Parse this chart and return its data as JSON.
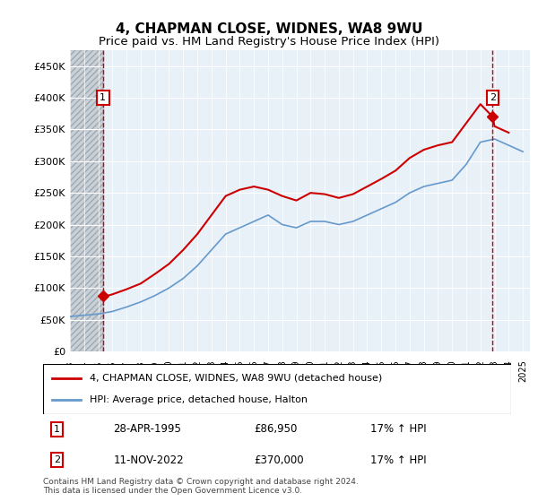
{
  "title": "4, CHAPMAN CLOSE, WIDNES, WA8 9WU",
  "subtitle": "Price paid vs. HM Land Registry's House Price Index (HPI)",
  "legend_line1": "4, CHAPMAN CLOSE, WIDNES, WA8 9WU (detached house)",
  "legend_line2": "HPI: Average price, detached house, Halton",
  "footer1": "Contains HM Land Registry data © Crown copyright and database right 2024.",
  "footer2": "This data is licensed under the Open Government Licence v3.0.",
  "annotation1_label": "1",
  "annotation1_date": "28-APR-1995",
  "annotation1_price": "£86,950",
  "annotation1_hpi": "17% ↑ HPI",
  "annotation2_label": "2",
  "annotation2_date": "11-NOV-2022",
  "annotation2_price": "£370,000",
  "annotation2_hpi": "17% ↑ HPI",
  "ylim": [
    0,
    475000
  ],
  "yticks": [
    0,
    50000,
    100000,
    150000,
    200000,
    250000,
    300000,
    350000,
    400000,
    450000
  ],
  "xlim_start": 1993.0,
  "xlim_end": 2025.5,
  "hatch_end": 1995.33,
  "vline1_x": 1995.33,
  "vline2_x": 2022.87,
  "marker1_x": 1995.33,
  "marker1_y": 86950,
  "marker2_x": 2022.87,
  "marker2_y": 370000,
  "bg_color": "#e8f0f8",
  "hatch_color": "#c8d0d8",
  "plot_bg": "#dce8f0",
  "red_line_color": "#cc0000",
  "blue_line_color": "#6699cc",
  "vline_color": "#cc0000",
  "marker_color": "#cc0000",
  "grid_color": "#ffffff",
  "hpi_line": {
    "years": [
      1993,
      1994,
      1995,
      1996,
      1997,
      1998,
      1999,
      2000,
      2001,
      2002,
      2003,
      2004,
      2005,
      2006,
      2007,
      2008,
      2009,
      2010,
      2011,
      2012,
      2013,
      2014,
      2015,
      2016,
      2017,
      2018,
      2019,
      2020,
      2021,
      2022,
      2023,
      2024,
      2025
    ],
    "values": [
      55000,
      57000,
      59000,
      63000,
      70000,
      78000,
      88000,
      100000,
      115000,
      135000,
      160000,
      185000,
      195000,
      205000,
      215000,
      200000,
      195000,
      205000,
      205000,
      200000,
      205000,
      215000,
      225000,
      235000,
      250000,
      260000,
      265000,
      270000,
      295000,
      330000,
      335000,
      325000,
      315000
    ]
  },
  "price_line": {
    "years": [
      1995.33,
      1995.5,
      1996,
      1997,
      1998,
      1999,
      2000,
      2001,
      2002,
      2003,
      2004,
      2005,
      2006,
      2007,
      2008,
      2009,
      2010,
      2011,
      2012,
      2013,
      2014,
      2015,
      2016,
      2017,
      2018,
      2019,
      2020,
      2021,
      2022,
      2022.87,
      2023,
      2024
    ],
    "values": [
      86950,
      87000,
      90000,
      98000,
      107000,
      122000,
      138000,
      160000,
      185000,
      215000,
      245000,
      255000,
      260000,
      255000,
      245000,
      238000,
      250000,
      248000,
      242000,
      248000,
      260000,
      272000,
      285000,
      305000,
      318000,
      325000,
      330000,
      360000,
      390000,
      370000,
      355000,
      345000
    ]
  }
}
